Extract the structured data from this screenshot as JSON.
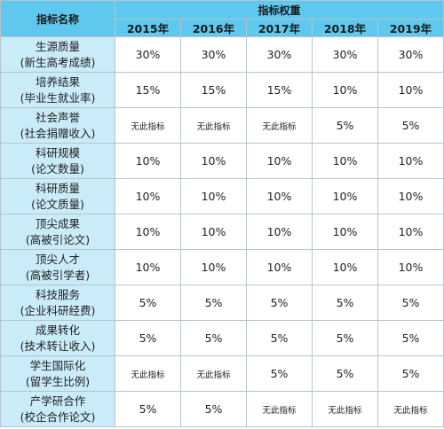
{
  "table": {
    "corner_header": "指标名称",
    "group_header": "指标权重",
    "years": [
      "2015年",
      "2016年",
      "2017年",
      "2018年",
      "2019年"
    ],
    "rows": [
      {
        "name": "生源质量",
        "sub": "(新生高考成绩)",
        "values": [
          "30%",
          "30%",
          "30%",
          "30%",
          "30%"
        ]
      },
      {
        "name": "培养结果",
        "sub": "(毕业生就业率)",
        "values": [
          "15%",
          "15%",
          "15%",
          "10%",
          "10%"
        ]
      },
      {
        "name": "社会声誉",
        "sub": "(社会捐赠收入)",
        "values": [
          "无此指标",
          "无此指标",
          "无此指标",
          "5%",
          "5%"
        ]
      },
      {
        "name": "科研规模",
        "sub": "(论文数量)",
        "values": [
          "10%",
          "10%",
          "10%",
          "10%",
          "10%"
        ]
      },
      {
        "name": "科研质量",
        "sub": "(论文质量)",
        "values": [
          "10%",
          "10%",
          "10%",
          "10%",
          "10%"
        ]
      },
      {
        "name": "顶尖成果",
        "sub": "(高被引论文)",
        "values": [
          "10%",
          "10%",
          "10%",
          "10%",
          "10%"
        ]
      },
      {
        "name": "顶尖人才",
        "sub": "(高被引学者)",
        "values": [
          "10%",
          "10%",
          "10%",
          "10%",
          "10%"
        ]
      },
      {
        "name": "科技服务",
        "sub": "(企业科研经费)",
        "values": [
          "5%",
          "5%",
          "5%",
          "5%",
          "5%"
        ]
      },
      {
        "name": "成果转化",
        "sub": "(技术转让收入)",
        "values": [
          "5%",
          "5%",
          "5%",
          "5%",
          "5%"
        ]
      },
      {
        "name": "学生国际化",
        "sub": "(留学生比例)",
        "values": [
          "无此指标",
          "无此指标",
          "5%",
          "5%",
          "5%"
        ]
      },
      {
        "name": "产学研合作",
        "sub": "(校企合作论文)",
        "values": [
          "5%",
          "5%",
          "无此指标",
          "无此指标",
          "无此指标"
        ]
      }
    ]
  },
  "colors": {
    "header_bg": "#5fc8ee",
    "name_column_bg": "#caebf8",
    "border": "#b7c4cc"
  }
}
